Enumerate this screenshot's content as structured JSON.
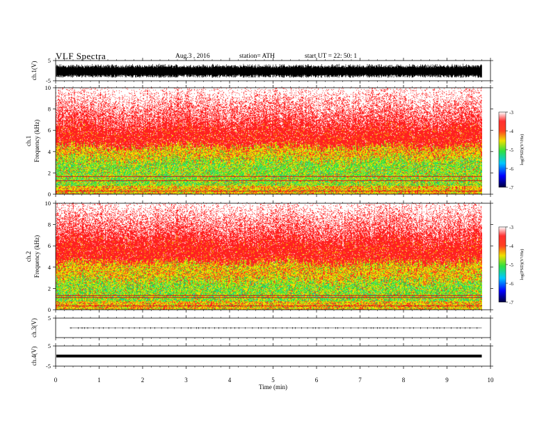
{
  "header": {
    "title": "VLF  Spectra",
    "date": "Aug.3   , 2016",
    "station": "station= ATH",
    "start": "start  UT  =    22: 50: 1"
  },
  "colors": {
    "red": "#ff2020",
    "yellow": "#f0e000",
    "green": "#30e040",
    "cyan": "#00d0e0",
    "blue": "#0000ff",
    "black": "#000000"
  },
  "chart_data": [
    {
      "type": "line",
      "name": "ch1-waveform",
      "ylabel": "ch.1(V)",
      "ylim": [
        -5,
        5
      ],
      "yticks": [
        "5",
        "-5"
      ],
      "trace_amplitude_v": 3.5
    },
    {
      "type": "heatmap",
      "name": "ch1-spectrogram",
      "ylabel_line1": "ch.1",
      "ylabel_line2": "Frequency  (kHz)",
      "ylim": [
        0,
        10
      ],
      "yticks": [
        "10",
        "8",
        "6",
        "4",
        "2",
        "0"
      ],
      "band_edges_khz": {
        "green_top": 3.3,
        "yellow_top": 4.5,
        "red_solid_top": 6.3
      },
      "tones_khz": [
        0.3,
        1.3,
        1.7
      ],
      "colorbar": {
        "label": "log(PSD)(V²/Hz)",
        "ticks": [
          "-3",
          "-4",
          "-5",
          "-6",
          "-7"
        ],
        "range": [
          -7,
          -3
        ]
      }
    },
    {
      "type": "heatmap",
      "name": "ch2-spectrogram",
      "ylabel_line1": "ch.2",
      "ylabel_line2": "Frequency  (kHz)",
      "ylim": [
        0,
        10
      ],
      "yticks": [
        "10",
        "8",
        "6",
        "4",
        "2",
        "0"
      ],
      "band_edges_khz": {
        "green_top": 2.8,
        "yellow_top": 4.5,
        "red_solid_top": 6.5
      },
      "tones_khz": [
        0.4,
        1.2,
        1.4
      ],
      "colorbar": {
        "label": "log(PSD)(V²/Hz)",
        "ticks": [
          "-3",
          "-4",
          "-5",
          "-6",
          "-7"
        ],
        "range": [
          -7,
          -3
        ]
      }
    },
    {
      "type": "line",
      "name": "ch3-waveform",
      "ylabel": "ch.3(V)",
      "ylim": [
        -5,
        5
      ],
      "yticks": [
        "5"
      ],
      "trace_level_v": 0
    },
    {
      "type": "line",
      "name": "ch4-waveform",
      "ylabel": "ch.4(V)",
      "ylim": [
        -5,
        5
      ],
      "yticks": [
        "5",
        "-5"
      ],
      "trace_level_v": 0
    }
  ],
  "xaxis": {
    "label": "Time  (min)",
    "xlim": [
      0,
      10
    ],
    "ticks": [
      "0",
      "1",
      "2",
      "3",
      "4",
      "5",
      "6",
      "7",
      "8",
      "9",
      "10"
    ],
    "data_end_min": 9.8
  }
}
